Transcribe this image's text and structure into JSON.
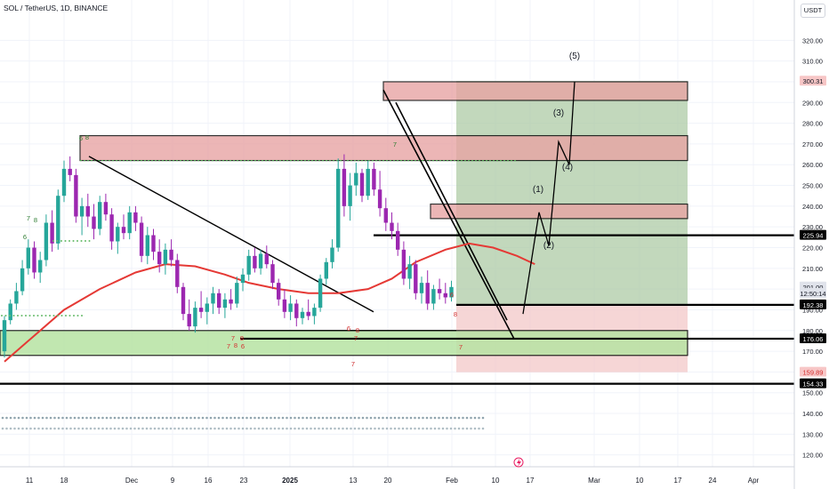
{
  "title": "SOL / TetherUS, 1D, BINANCE",
  "currency": "USDT",
  "colors": {
    "bull": "#26a69a",
    "bear": "#9c27b0",
    "ma": "#e53935",
    "resistance_fill": "#e8a4a4",
    "support_fill": "#b7e3a3",
    "profit_fill": "#a8c8a0",
    "loss_fill": "#f2c4c4",
    "line": "#000000"
  },
  "chart_data": {
    "type": "candlestick",
    "x_axis": {
      "ticks": [
        "11",
        "18",
        "Dec",
        "9",
        "16",
        "23",
        "2025",
        "13",
        "20",
        "Feb",
        "10",
        "17",
        "Mar",
        "10",
        "17",
        "24",
        "Apr"
      ]
    },
    "y_axis": {
      "min": 110,
      "max": 330,
      "ticks": [
        "320.00",
        "310.00",
        "300.00",
        "290.00",
        "280.00",
        "270.00",
        "260.00",
        "250.00",
        "240.00",
        "230.00",
        "220.00",
        "210.00",
        "200.00",
        "190.00",
        "180.00",
        "170.00",
        "160.00",
        "150.00",
        "140.00",
        "130.00",
        "120.00"
      ]
    },
    "price_labels": [
      {
        "text": "300.31",
        "value": 300.31,
        "style": "zone"
      },
      {
        "text": "225.94",
        "value": 225.94,
        "style": "line"
      },
      {
        "text": "201.00",
        "value": 201.0,
        "style": "current"
      },
      {
        "text": "12:50:14",
        "value": 197.9,
        "style": "countdown"
      },
      {
        "text": "192.38",
        "value": 192.38,
        "style": "line"
      },
      {
        "text": "176.06",
        "value": 176.06,
        "style": "line"
      },
      {
        "text": "159.89",
        "value": 159.89,
        "style": "stop"
      },
      {
        "text": "154.33",
        "value": 154.33,
        "style": "line"
      }
    ],
    "horizontal_lines": [
      225.94,
      192.38,
      176.06,
      154.33
    ],
    "resistance_zones": [
      [
        262,
        274
      ],
      [
        234,
        241
      ],
      [
        291,
        300
      ]
    ],
    "support_zone": [
      168,
      180
    ],
    "wave_labels": [
      "(5)",
      "(3)",
      "(4)",
      "(1)",
      "(2)"
    ],
    "sequential_counts": [
      "7",
      "8",
      "6",
      "7",
      "8",
      "6",
      "7",
      "8",
      "7",
      "7",
      "8",
      "6",
      "8",
      "6",
      "7",
      "8",
      "6",
      "7"
    ],
    "moving_average": [
      {
        "i": 0,
        "v": 165
      },
      {
        "i": 4,
        "v": 175
      },
      {
        "i": 10,
        "v": 190
      },
      {
        "i": 16,
        "v": 200
      },
      {
        "i": 22,
        "v": 208
      },
      {
        "i": 27,
        "v": 212
      },
      {
        "i": 32,
        "v": 211
      },
      {
        "i": 37,
        "v": 207
      },
      {
        "i": 41,
        "v": 203
      },
      {
        "i": 46,
        "v": 200
      },
      {
        "i": 51,
        "v": 198
      },
      {
        "i": 56,
        "v": 198
      },
      {
        "i": 61,
        "v": 200
      },
      {
        "i": 65,
        "v": 205
      },
      {
        "i": 69,
        "v": 213
      },
      {
        "i": 74,
        "v": 219
      },
      {
        "i": 78,
        "v": 222
      },
      {
        "i": 82,
        "v": 220
      },
      {
        "i": 86,
        "v": 216
      },
      {
        "i": 89,
        "v": 212
      }
    ],
    "candles": [
      {
        "o": 170,
        "h": 187,
        "l": 167,
        "c": 185
      },
      {
        "o": 185,
        "h": 195,
        "l": 183,
        "c": 193
      },
      {
        "o": 193,
        "h": 203,
        "l": 190,
        "c": 199
      },
      {
        "o": 199,
        "h": 214,
        "l": 197,
        "c": 210
      },
      {
        "o": 210,
        "h": 224,
        "l": 207,
        "c": 220
      },
      {
        "o": 220,
        "h": 223,
        "l": 205,
        "c": 208
      },
      {
        "o": 208,
        "h": 218,
        "l": 203,
        "c": 214
      },
      {
        "o": 214,
        "h": 236,
        "l": 211,
        "c": 232
      },
      {
        "o": 232,
        "h": 238,
        "l": 218,
        "c": 222
      },
      {
        "o": 222,
        "h": 248,
        "l": 219,
        "c": 245
      },
      {
        "o": 245,
        "h": 262,
        "l": 242,
        "c": 258
      },
      {
        "o": 258,
        "h": 264,
        "l": 252,
        "c": 255
      },
      {
        "o": 255,
        "h": 258,
        "l": 232,
        "c": 235
      },
      {
        "o": 235,
        "h": 244,
        "l": 226,
        "c": 240
      },
      {
        "o": 240,
        "h": 246,
        "l": 230,
        "c": 235
      },
      {
        "o": 235,
        "h": 241,
        "l": 224,
        "c": 229
      },
      {
        "o": 229,
        "h": 245,
        "l": 226,
        "c": 242
      },
      {
        "o": 242,
        "h": 246,
        "l": 233,
        "c": 236
      },
      {
        "o": 236,
        "h": 239,
        "l": 219,
        "c": 223
      },
      {
        "o": 223,
        "h": 232,
        "l": 217,
        "c": 230
      },
      {
        "o": 230,
        "h": 236,
        "l": 224,
        "c": 227
      },
      {
        "o": 227,
        "h": 240,
        "l": 224,
        "c": 237
      },
      {
        "o": 237,
        "h": 240,
        "l": 228,
        "c": 232
      },
      {
        "o": 232,
        "h": 235,
        "l": 213,
        "c": 216
      },
      {
        "o": 216,
        "h": 230,
        "l": 212,
        "c": 226
      },
      {
        "o": 226,
        "h": 229,
        "l": 214,
        "c": 218
      },
      {
        "o": 218,
        "h": 224,
        "l": 208,
        "c": 212
      },
      {
        "o": 212,
        "h": 222,
        "l": 207,
        "c": 219
      },
      {
        "o": 219,
        "h": 224,
        "l": 211,
        "c": 214
      },
      {
        "o": 214,
        "h": 217,
        "l": 198,
        "c": 201
      },
      {
        "o": 201,
        "h": 203,
        "l": 185,
        "c": 188
      },
      {
        "o": 188,
        "h": 195,
        "l": 180,
        "c": 182
      },
      {
        "o": 182,
        "h": 194,
        "l": 179,
        "c": 191
      },
      {
        "o": 191,
        "h": 199,
        "l": 186,
        "c": 189
      },
      {
        "o": 189,
        "h": 196,
        "l": 183,
        "c": 193
      },
      {
        "o": 193,
        "h": 201,
        "l": 188,
        "c": 198
      },
      {
        "o": 198,
        "h": 200,
        "l": 188,
        "c": 191
      },
      {
        "o": 191,
        "h": 198,
        "l": 186,
        "c": 195
      },
      {
        "o": 195,
        "h": 200,
        "l": 190,
        "c": 193
      },
      {
        "o": 193,
        "h": 206,
        "l": 191,
        "c": 203
      },
      {
        "o": 203,
        "h": 210,
        "l": 199,
        "c": 207
      },
      {
        "o": 207,
        "h": 219,
        "l": 204,
        "c": 216
      },
      {
        "o": 216,
        "h": 220,
        "l": 208,
        "c": 210
      },
      {
        "o": 210,
        "h": 219,
        "l": 207,
        "c": 217
      },
      {
        "o": 217,
        "h": 221,
        "l": 210,
        "c": 212
      },
      {
        "o": 212,
        "h": 214,
        "l": 200,
        "c": 203
      },
      {
        "o": 203,
        "h": 205,
        "l": 192,
        "c": 195
      },
      {
        "o": 195,
        "h": 200,
        "l": 186,
        "c": 189
      },
      {
        "o": 189,
        "h": 197,
        "l": 185,
        "c": 193
      },
      {
        "o": 193,
        "h": 195,
        "l": 182,
        "c": 186
      },
      {
        "o": 186,
        "h": 191,
        "l": 183,
        "c": 189
      },
      {
        "o": 189,
        "h": 195,
        "l": 185,
        "c": 187
      },
      {
        "o": 187,
        "h": 193,
        "l": 183,
        "c": 191
      },
      {
        "o": 191,
        "h": 207,
        "l": 189,
        "c": 205
      },
      {
        "o": 205,
        "h": 215,
        "l": 202,
        "c": 213
      },
      {
        "o": 213,
        "h": 224,
        "l": 210,
        "c": 220
      },
      {
        "o": 220,
        "h": 263,
        "l": 218,
        "c": 258
      },
      {
        "o": 258,
        "h": 265,
        "l": 235,
        "c": 240
      },
      {
        "o": 240,
        "h": 256,
        "l": 233,
        "c": 250
      },
      {
        "o": 250,
        "h": 261,
        "l": 245,
        "c": 256
      },
      {
        "o": 256,
        "h": 258,
        "l": 242,
        "c": 245
      },
      {
        "o": 245,
        "h": 262,
        "l": 243,
        "c": 258
      },
      {
        "o": 258,
        "h": 261,
        "l": 245,
        "c": 248
      },
      {
        "o": 248,
        "h": 257,
        "l": 235,
        "c": 239
      },
      {
        "o": 239,
        "h": 244,
        "l": 228,
        "c": 232
      },
      {
        "o": 232,
        "h": 237,
        "l": 224,
        "c": 228
      },
      {
        "o": 228,
        "h": 232,
        "l": 216,
        "c": 219
      },
      {
        "o": 219,
        "h": 223,
        "l": 202,
        "c": 205
      },
      {
        "o": 205,
        "h": 216,
        "l": 200,
        "c": 212
      },
      {
        "o": 212,
        "h": 214,
        "l": 195,
        "c": 198
      },
      {
        "o": 198,
        "h": 206,
        "l": 193,
        "c": 203
      },
      {
        "o": 203,
        "h": 209,
        "l": 190,
        "c": 193
      },
      {
        "o": 193,
        "h": 202,
        "l": 190,
        "c": 200
      },
      {
        "o": 200,
        "h": 205,
        "l": 195,
        "c": 198
      },
      {
        "o": 198,
        "h": 203,
        "l": 193,
        "c": 196
      },
      {
        "o": 196,
        "h": 204,
        "l": 194,
        "c": 201
      }
    ]
  }
}
